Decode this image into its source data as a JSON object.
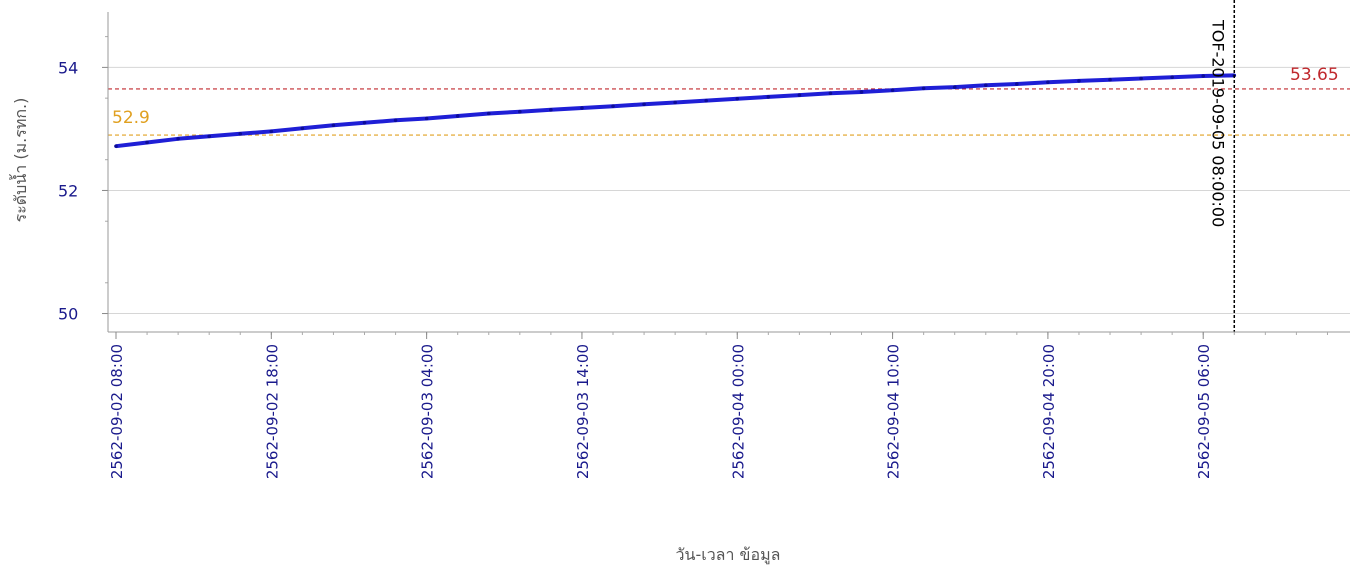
{
  "chart_data": {
    "type": "line",
    "title": "",
    "xlabel": "วัน-เวลา ข้อมูล",
    "ylabel": "ระดับน้ำ (ม.รทก.)",
    "ylim": [
      49.7,
      54.9
    ],
    "y_ticks": [
      50,
      52,
      54
    ],
    "x_start": "2562-09-02 08:00",
    "x_end": "2562-09-05 15:00",
    "x_ticks": [
      "2562-09-02 08:00",
      "2562-09-02 18:00",
      "2562-09-03 04:00",
      "2562-09-03 14:00",
      "2562-09-04 00:00",
      "2562-09-04 10:00",
      "2562-09-04 20:00",
      "2562-09-05 06:00"
    ],
    "grid": true,
    "series": [
      {
        "color": "#1f1fd6",
        "x": [
          "2562-09-02 08:00",
          "2562-09-02 10:00",
          "2562-09-02 12:00",
          "2562-09-02 14:00",
          "2562-09-02 16:00",
          "2562-09-02 18:00",
          "2562-09-02 20:00",
          "2562-09-02 22:00",
          "2562-09-03 00:00",
          "2562-09-03 02:00",
          "2562-09-03 04:00",
          "2562-09-03 06:00",
          "2562-09-03 08:00",
          "2562-09-03 10:00",
          "2562-09-03 12:00",
          "2562-09-03 14:00",
          "2562-09-03 16:00",
          "2562-09-03 18:00",
          "2562-09-03 20:00",
          "2562-09-03 22:00",
          "2562-09-04 00:00",
          "2562-09-04 02:00",
          "2562-09-04 04:00",
          "2562-09-04 06:00",
          "2562-09-04 08:00",
          "2562-09-04 10:00",
          "2562-09-04 12:00",
          "2562-09-04 14:00",
          "2562-09-04 16:00",
          "2562-09-04 18:00",
          "2562-09-04 20:00",
          "2562-09-04 22:00",
          "2562-09-05 00:00",
          "2562-09-05 02:00",
          "2562-09-05 04:00",
          "2562-09-05 06:00",
          "2562-09-05 08:00"
        ],
        "y": [
          52.72,
          52.78,
          52.84,
          52.88,
          52.92,
          52.96,
          53.01,
          53.06,
          53.1,
          53.14,
          53.17,
          53.21,
          53.25,
          53.28,
          53.31,
          53.34,
          53.37,
          53.4,
          53.43,
          53.46,
          53.49,
          53.52,
          53.55,
          53.58,
          53.6,
          53.63,
          53.66,
          53.68,
          53.71,
          53.73,
          53.76,
          53.78,
          53.8,
          53.82,
          53.84,
          53.86,
          53.87
        ]
      }
    ],
    "reference_lines": [
      {
        "value": 53.65,
        "label": "53.65",
        "color": "#c0282d"
      },
      {
        "value": 52.9,
        "label": "52.9",
        "color": "#e0a020"
      }
    ],
    "vertical_marker": {
      "x": "2562-09-05 08:00",
      "label": "TOF-2019-09-05 08:00:00",
      "color": "#000000"
    }
  }
}
